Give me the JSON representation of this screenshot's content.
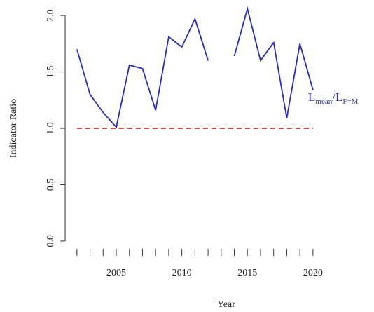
{
  "chart_data": {
    "type": "line",
    "x": [
      2002,
      2003,
      2004,
      2005,
      2006,
      2007,
      2008,
      2009,
      2010,
      2011,
      2012,
      2013,
      2014,
      2015,
      2016,
      2017,
      2018,
      2019,
      2020
    ],
    "series": [
      {
        "color": "#2b2bbf",
        "values": [
          1.7,
          1.3,
          1.14,
          1.01,
          1.56,
          1.53,
          1.16,
          1.81,
          1.72,
          1.97,
          1.6,
          null,
          1.64,
          2.06,
          1.6,
          1.76,
          1.09,
          1.75,
          1.34
        ]
      }
    ],
    "reference_line": {
      "value": 1,
      "color": "#d04848",
      "x": [
        2002,
        2020
      ]
    },
    "annotation": {
      "main": "L",
      "sub": "mean",
      "main2": "/L",
      "sub2": "F=M",
      "color": "#2b2bbf"
    },
    "xlabel": "Year",
    "ylabel": "Indicator Ratio",
    "xlim": [
      2001.1,
      2024.6
    ],
    "ylim": [
      -0.1,
      2.1
    ],
    "xticks": [
      2005,
      2010,
      2015,
      2020
    ],
    "xminorticks": [
      2002,
      2003,
      2004,
      2005,
      2006,
      2007,
      2008,
      2009,
      2010,
      2011,
      2012,
      2013,
      2014,
      2015,
      2016,
      2017,
      2018,
      2019,
      2020
    ],
    "yticks": [
      {
        "value": 0,
        "label": "0.0"
      },
      0.5,
      {
        "value": 1,
        "label": "1.0"
      },
      1.5,
      {
        "value": 2,
        "label": "2.0"
      }
    ]
  }
}
